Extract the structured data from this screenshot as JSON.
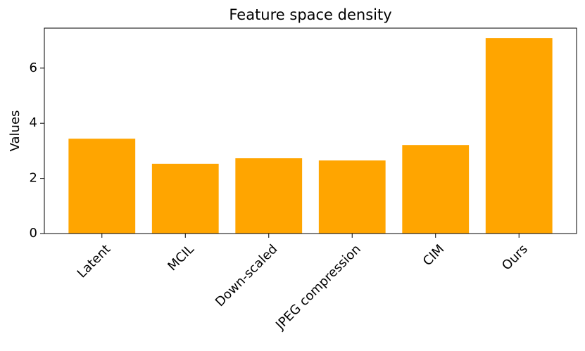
{
  "chart_data": {
    "type": "bar",
    "title": "Feature space density",
    "y_label": "Values",
    "categories": [
      "Latent",
      "MCIL",
      "Down-scaled",
      "JPEG compression",
      "CIM",
      "Ours"
    ],
    "values": [
      3.44,
      2.53,
      2.73,
      2.65,
      3.21,
      7.09
    ],
    "color": "#ffa500",
    "ylim": [
      0,
      7.45
    ],
    "yticks": [
      0,
      2,
      4,
      6
    ],
    "grid": false
  }
}
